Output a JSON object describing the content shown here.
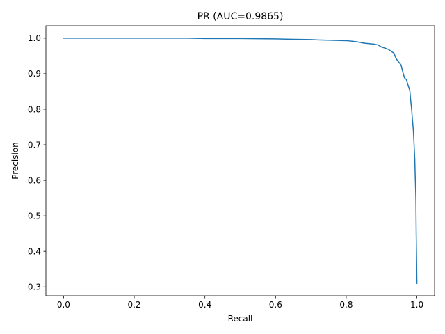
{
  "chart_data": {
    "type": "line",
    "title": "PR (AUC=0.9865)",
    "xlabel": "Recall",
    "ylabel": "Precision",
    "xlim": [
      -0.05,
      1.05
    ],
    "ylim": [
      0.275,
      1.035
    ],
    "xticks": [
      0.0,
      0.2,
      0.4,
      0.6,
      0.8,
      1.0
    ],
    "xtick_labels": [
      "0.0",
      "0.2",
      "0.4",
      "0.6",
      "0.8",
      "1.0"
    ],
    "yticks": [
      0.3,
      0.4,
      0.5,
      0.6,
      0.7,
      0.8,
      0.9,
      1.0
    ],
    "ytick_labels": [
      "0.3",
      "0.4",
      "0.5",
      "0.6",
      "0.7",
      "0.8",
      "0.9",
      "1.0"
    ],
    "grid": false,
    "legend": false,
    "series": [
      {
        "color": "#1f77b4",
        "x": [
          0.0,
          0.2,
          0.35,
          0.4,
          0.5,
          0.6,
          0.64,
          0.7,
          0.72,
          0.8,
          0.83,
          0.85,
          0.88,
          0.89,
          0.9,
          0.91,
          0.92,
          0.93,
          0.935,
          0.94,
          0.945,
          0.955,
          0.96,
          0.965,
          0.97,
          0.975,
          0.98,
          0.982,
          0.985,
          0.987,
          0.99,
          0.992,
          0.994,
          0.995,
          0.997,
          0.998,
          0.999,
          1.0
        ],
        "y": [
          1.0,
          1.0,
          1.0,
          0.999,
          0.999,
          0.998,
          0.997,
          0.996,
          0.995,
          0.993,
          0.99,
          0.986,
          0.983,
          0.981,
          0.975,
          0.972,
          0.968,
          0.961,
          0.958,
          0.945,
          0.937,
          0.925,
          0.905,
          0.888,
          0.884,
          0.868,
          0.852,
          0.83,
          0.8,
          0.775,
          0.74,
          0.7,
          0.66,
          0.62,
          0.55,
          0.45,
          0.38,
          0.31
        ]
      }
    ]
  }
}
